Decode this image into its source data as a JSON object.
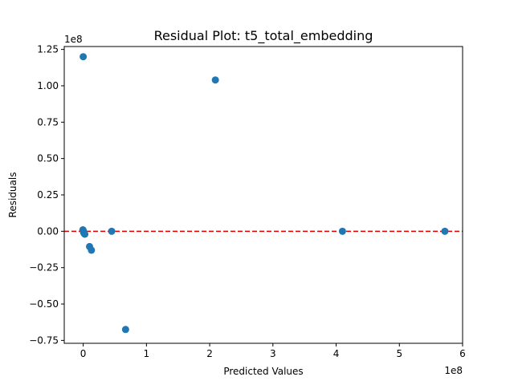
{
  "chart_data": {
    "type": "scatter",
    "title": "Residual Plot: t5_total_embedding",
    "xlabel": "Predicted Values",
    "ylabel": "Residuals",
    "x_multiplier": "1e8",
    "y_multiplier": "1e8",
    "xlim": [
      -30000000,
      600000000
    ],
    "ylim": [
      -77000000,
      127000000
    ],
    "x_ticks": [
      {
        "value": 0,
        "label": "0"
      },
      {
        "value": 100000000,
        "label": "1"
      },
      {
        "value": 200000000,
        "label": "2"
      },
      {
        "value": 300000000,
        "label": "3"
      },
      {
        "value": 400000000,
        "label": "4"
      },
      {
        "value": 500000000,
        "label": "5"
      },
      {
        "value": 600000000,
        "label": "6"
      }
    ],
    "y_ticks": [
      {
        "value": -75000000,
        "label": "−0.75"
      },
      {
        "value": -50000000,
        "label": "−0.50"
      },
      {
        "value": -25000000,
        "label": "−0.25"
      },
      {
        "value": 0,
        "label": "0.00"
      },
      {
        "value": 25000000,
        "label": "0.25"
      },
      {
        "value": 50000000,
        "label": "0.50"
      },
      {
        "value": 75000000,
        "label": "0.75"
      },
      {
        "value": 100000000,
        "label": "1.00"
      },
      {
        "value": 125000000,
        "label": "1.25"
      }
    ],
    "reference_line": {
      "y": 0,
      "color": "#e00000",
      "style": "dashed"
    },
    "point_color": "#1f77b4",
    "grid": false,
    "points": [
      {
        "x": 0,
        "y": 120000000
      },
      {
        "x": 209000000,
        "y": 104000000
      },
      {
        "x": -500000,
        "y": 1000000
      },
      {
        "x": 0,
        "y": 500000
      },
      {
        "x": 500000,
        "y": -500000
      },
      {
        "x": 1000000,
        "y": -1000000
      },
      {
        "x": 1500000,
        "y": -1500000
      },
      {
        "x": 2500000,
        "y": -2000000
      },
      {
        "x": 10000000,
        "y": -10500000
      },
      {
        "x": 13000000,
        "y": -13000000
      },
      {
        "x": 45000000,
        "y": 0
      },
      {
        "x": 67000000,
        "y": -67500000
      },
      {
        "x": 410000000,
        "y": 0
      },
      {
        "x": 572000000,
        "y": 0
      }
    ]
  }
}
